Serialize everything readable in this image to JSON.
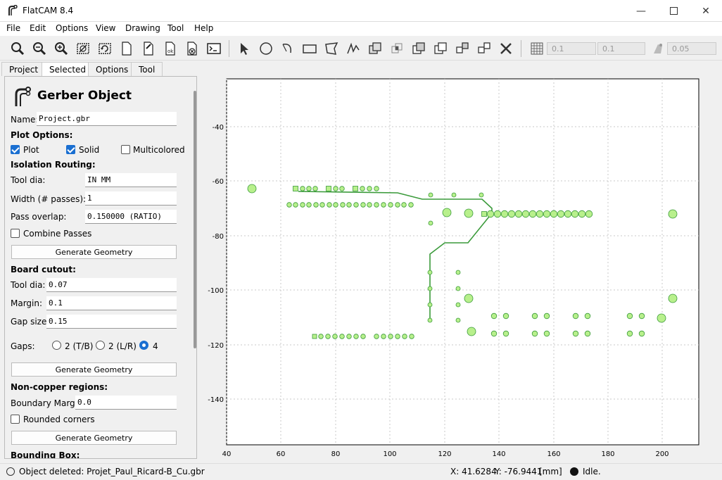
{
  "window": {
    "title": "FlatCAM 8.4",
    "controls": [
      "minimize",
      "maximize",
      "close"
    ]
  },
  "menu": [
    "File",
    "Edit",
    "Options",
    "View",
    "Drawing",
    "Tool",
    "Help"
  ],
  "toolbar": {
    "icons": [
      "zoom-fit-icon",
      "zoom-out-icon",
      "zoom-in-icon",
      "clear-plot-icon",
      "replot-icon",
      "new-geometry-icon",
      "edit-geometry-icon",
      "update-geometry-icon",
      "delete-icon",
      "shell-icon",
      "select-icon",
      "circle-icon",
      "arc-icon",
      "rectangle-icon",
      "polygon-icon",
      "path-icon",
      "union-icon",
      "intersection-icon",
      "subtract-icon",
      "cut-icon",
      "move-icon",
      "copy-icon",
      "delete-shape-icon",
      "grid-snap-icon",
      "corner-snap-icon"
    ],
    "grid_x": "0.1",
    "grid_y": "0.1",
    "snap_max": "0.05"
  },
  "tabs": [
    "Project",
    "Selected",
    "Options",
    "Tool"
  ],
  "active_tab": "Selected",
  "panel": {
    "title": "Gerber Object",
    "name_label": "Name:",
    "name_value": "Project.gbr",
    "plot_options": "Plot Options:",
    "plot": "Plot",
    "solid": "Solid",
    "multicolored": "Multicolored",
    "isolation": "Isolation Routing:",
    "tool_dia_label": "Tool dia:",
    "tool_dia_value": "IN MM",
    "width_label": "Width (# passes):",
    "width_value": "1",
    "overlap_label": "Pass overlap:",
    "overlap_value": "0.150000 (RATIO)",
    "combine": "Combine Passes",
    "generate1": "Generate Geometry",
    "cutout": "Board cutout:",
    "cut_dia_label": "Tool dia:",
    "cut_dia_value": "0.07",
    "margin_label": "Margin:",
    "margin_value": "0.1",
    "gap_label": "Gap size:",
    "gap_value": "0.15",
    "gaps_label": "Gaps:",
    "gap_opt1": "2 (T/B)",
    "gap_opt2": "2 (L/R)",
    "gap_opt3": "4",
    "generate2": "Generate Geometry",
    "noncopper": "Non-copper regions:",
    "boundary_label": "Boundary Margin:",
    "boundary_value": "0.0",
    "rounded": "Rounded corners",
    "generate3": "Generate Geometry",
    "bbox": "Bounding Box:"
  },
  "plot": {
    "x_ticks": [
      "40",
      "60",
      "80",
      "100",
      "120",
      "140",
      "160",
      "180",
      "200"
    ],
    "y_ticks": [
      "-40",
      "-60",
      "-80",
      "-100",
      "-120",
      "-140"
    ],
    "pad_color": "#b8f08c",
    "trace_color": "#3a9a3a"
  },
  "status": {
    "message": "Object deleted: Projet_Paul_Ricard-B_Cu.gbr",
    "x_coord": "X: 41.6284",
    "y_coord": "Y: -76.9441",
    "units": "[mm]",
    "state": "Idle."
  }
}
